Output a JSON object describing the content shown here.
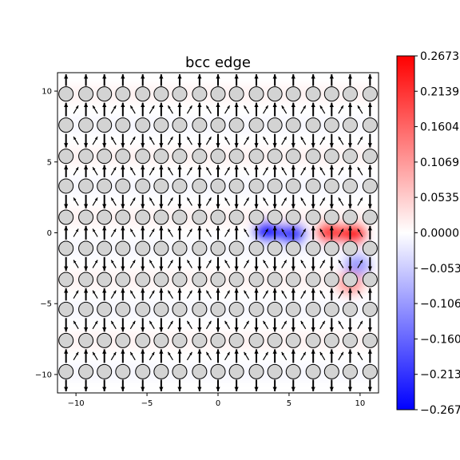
{
  "chart_data": {
    "type": "heatmap",
    "title": "bcc edge",
    "xlabel": "",
    "ylabel": "",
    "xlim": [
      -11.3,
      11.3
    ],
    "ylim": [
      -11.3,
      11.3
    ],
    "xticks": [
      -10,
      -5,
      0,
      5,
      10
    ],
    "yticks": [
      -10,
      -5,
      0,
      5,
      10
    ],
    "xtick_labels": [
      "−10",
      "−5",
      "0",
      "5",
      "10"
    ],
    "ytick_labels": [
      "10",
      "5",
      "0",
      "−5",
      "−10"
    ],
    "colormap": "bwr",
    "colorbar": {
      "vmin": -0.2673,
      "vmax": 0.2673,
      "ticks": [
        0.2673,
        0.2139,
        0.1604,
        0.1069,
        0.0535,
        0.0,
        -0.0535,
        -0.1069,
        -0.1604,
        -0.2139,
        -0.2673
      ],
      "tick_labels": [
        "0.2673",
        "0.2139",
        "0.1604",
        "0.1069",
        "0.0535",
        "0.0000",
        "−0.0535",
        "−0.1069",
        "−0.1604",
        "−0.2139",
        "−0.2673"
      ]
    },
    "atom_columns_x": [
      -10.7,
      -9.3,
      -8.0,
      -6.7,
      -5.3,
      -4.0,
      -2.7,
      -1.3,
      0.0,
      1.3,
      2.7,
      4.0,
      5.3,
      6.7,
      8.0,
      9.3,
      10.7
    ],
    "atom_rows_y": [
      9.8,
      7.6,
      5.4,
      3.3,
      1.1,
      -1.1,
      -3.3,
      -5.4,
      -7.6,
      -9.8
    ],
    "field_extrema": [
      {
        "x": 3.5,
        "y": 0.1,
        "value": -0.2673
      },
      {
        "x": 5.2,
        "y": -0.1,
        "value": -0.2139
      },
      {
        "x": 9.5,
        "y": -0.1,
        "value": 0.2673
      },
      {
        "x": 7.9,
        "y": 0.0,
        "value": 0.2139
      },
      {
        "x": 9.8,
        "y": -2.3,
        "value": -0.1069
      },
      {
        "x": 9.3,
        "y": -3.6,
        "value": 0.1069
      }
    ],
    "grid": false,
    "legend": "none"
  },
  "colors": {
    "negative": "#0000ff",
    "zero": "#ffffff",
    "positive": "#ff0000",
    "atom_fill": "#d3d3d3",
    "arrow": "#000000"
  }
}
